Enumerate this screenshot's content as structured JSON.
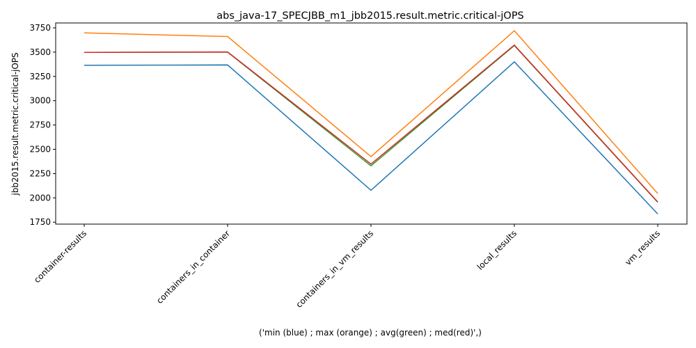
{
  "chart_data": {
    "type": "line",
    "title": "abs_java-17_SPECJBB_m1_jbb2015.result.metric.critical-jOPS",
    "xlabel": "('min (blue) ; max (orange) ; avg(green) ; med(red)',)",
    "ylabel": "jbb2015.result.metric.critical-jOPS",
    "categories": [
      "container-results",
      "containers_in_container",
      "containers_in_vm_results",
      "local_results",
      "vm_results"
    ],
    "ylim": [
      1730,
      3800
    ],
    "yticks": [
      1750,
      2000,
      2250,
      2500,
      2750,
      3000,
      3250,
      3500,
      3750
    ],
    "grid": false,
    "series": [
      {
        "color": "#1f77b4",
        "values": [
          3365,
          3368,
          2078,
          3400,
          1835
        ]
      },
      {
        "color": "#ff7f0e",
        "values": [
          3698,
          3660,
          2425,
          3720,
          2045
        ]
      },
      {
        "color": "#2ca02c",
        "values": [
          3497,
          3500,
          2330,
          3568,
          1955
        ]
      },
      {
        "color": "#d62728",
        "values": [
          3497,
          3502,
          2348,
          3572,
          1958
        ]
      }
    ]
  }
}
